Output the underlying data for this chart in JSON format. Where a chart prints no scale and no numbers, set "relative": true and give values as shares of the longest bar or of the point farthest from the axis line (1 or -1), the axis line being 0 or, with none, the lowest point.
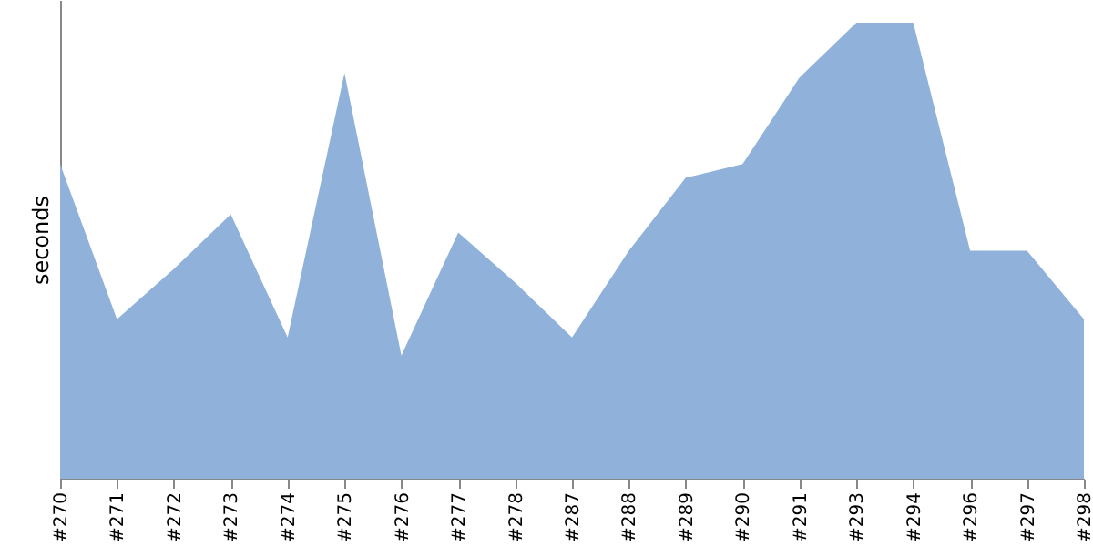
{
  "chart_data": {
    "type": "area",
    "relative": true,
    "ylabel": "seconds",
    "grid": false,
    "color": "#8fb1da",
    "categories": [
      "#270",
      "#271",
      "#272",
      "#273",
      "#274",
      "#275",
      "#276",
      "#277",
      "#278",
      "#287",
      "#288",
      "#289",
      "#290",
      "#291",
      "#293",
      "#294",
      "#296",
      "#297",
      "#298"
    ],
    "values": [
      0.69,
      0.35,
      0.46,
      0.58,
      0.31,
      0.89,
      0.27,
      0.54,
      0.43,
      0.31,
      0.5,
      0.66,
      0.69,
      0.88,
      1,
      1,
      0.5,
      0.5,
      0.35
    ]
  }
}
